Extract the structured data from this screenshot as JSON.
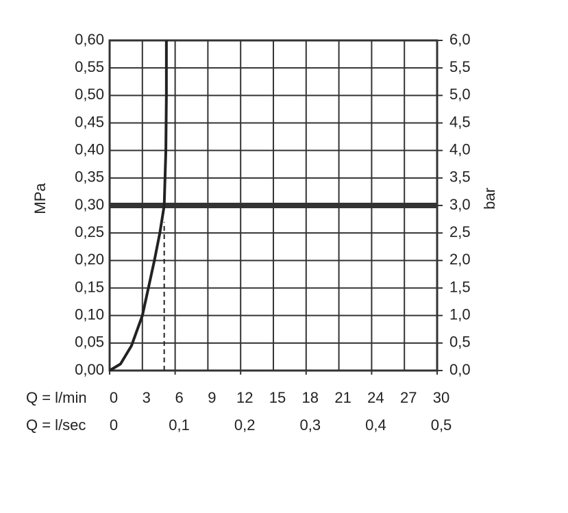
{
  "chart_data": {
    "type": "line",
    "xlabel": "Q = l/min",
    "x2label": "Q = l/sec",
    "ylabel": "MPa",
    "y2label": "bar",
    "xlim": [
      0,
      30
    ],
    "xticks": [
      0,
      3,
      6,
      9,
      12,
      15,
      18,
      21,
      24,
      27,
      30
    ],
    "x2lim": [
      0,
      0.5
    ],
    "x2ticks": [
      0,
      {
        "value": 0.1,
        "label": "0,1"
      },
      {
        "value": 0.2,
        "label": "0,2"
      },
      {
        "value": 0.3,
        "label": "0,3"
      },
      {
        "value": 0.4,
        "label": "0,4"
      },
      {
        "value": 0.5,
        "label": "0,5"
      }
    ],
    "ylim": [
      0,
      0.6
    ],
    "yticks": [
      {
        "value": 0,
        "label": "0,00"
      },
      {
        "value": 0.05,
        "label": "0,05"
      },
      {
        "value": 0.1,
        "label": "0,10"
      },
      {
        "value": 0.15,
        "label": "0,15"
      },
      {
        "value": 0.2,
        "label": "0,20"
      },
      {
        "value": 0.25,
        "label": "0,25"
      },
      {
        "value": 0.3,
        "label": "0,30"
      },
      {
        "value": 0.35,
        "label": "0,35"
      },
      {
        "value": 0.4,
        "label": "0,40"
      },
      {
        "value": 0.45,
        "label": "0,45"
      },
      {
        "value": 0.5,
        "label": "0,50"
      },
      {
        "value": 0.55,
        "label": "0,55"
      },
      {
        "value": 0.6,
        "label": "0,60"
      }
    ],
    "y2lim": [
      0,
      6
    ],
    "y2ticks": [
      {
        "value": 0,
        "label": "0,0"
      },
      {
        "value": 0.5,
        "label": "0,5"
      },
      {
        "value": 1,
        "label": "1,0"
      },
      {
        "value": 1.5,
        "label": "1,5"
      },
      {
        "value": 2,
        "label": "2,0"
      },
      {
        "value": 2.5,
        "label": "2,5"
      },
      {
        "value": 3,
        "label": "3,0"
      },
      {
        "value": 3.5,
        "label": "3,5"
      },
      {
        "value": 4,
        "label": "4,0"
      },
      {
        "value": 4.5,
        "label": "4,5"
      },
      {
        "value": 5,
        "label": "5,0"
      },
      {
        "value": 5.5,
        "label": "5,5"
      },
      {
        "value": 6,
        "label": "6,0"
      }
    ],
    "grid": true,
    "series": [
      {
        "color": "#222222",
        "x": [
          0,
          1,
          2,
          3,
          4.1,
          4.6,
          5.0,
          5.15,
          5.2,
          5.2
        ],
        "values": [
          0,
          0.012,
          0.045,
          0.1,
          0.2,
          0.25,
          0.3,
          0.4,
          0.5,
          0.6
        ]
      }
    ],
    "hline": {
      "value": 0.3,
      "color": "#333333"
    },
    "vline": {
      "x": 5.0,
      "ymax": 0.27
    }
  }
}
